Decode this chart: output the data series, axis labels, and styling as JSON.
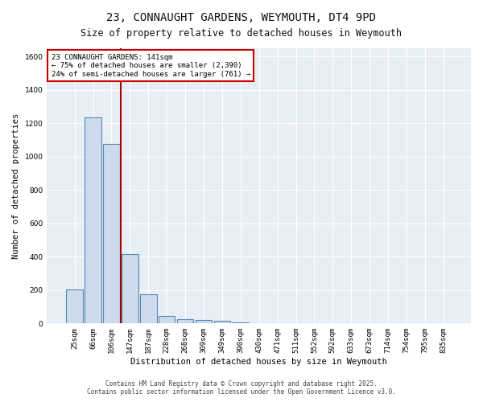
{
  "title_line1": "23, CONNAUGHT GARDENS, WEYMOUTH, DT4 9PD",
  "title_line2": "Size of property relative to detached houses in Weymouth",
  "xlabel": "Distribution of detached houses by size in Weymouth",
  "ylabel": "Number of detached properties",
  "categories": [
    "25sqm",
    "66sqm",
    "106sqm",
    "147sqm",
    "187sqm",
    "228sqm",
    "268sqm",
    "309sqm",
    "349sqm",
    "390sqm",
    "430sqm",
    "471sqm",
    "511sqm",
    "552sqm",
    "592sqm",
    "633sqm",
    "673sqm",
    "714sqm",
    "754sqm",
    "795sqm",
    "835sqm"
  ],
  "values": [
    205,
    1235,
    1075,
    415,
    175,
    45,
    25,
    20,
    15,
    5,
    2,
    1,
    0,
    0,
    0,
    0,
    0,
    0,
    0,
    0,
    0
  ],
  "bar_color": "#ccdaeb",
  "bar_edge_color": "#5588bb",
  "bar_edge_width": 0.8,
  "redline_x": 2.5,
  "redline_color": "#aa0000",
  "annotation_text": "23 CONNAUGHT GARDENS: 141sqm\n← 75% of detached houses are smaller (2,390)\n24% of semi-detached houses are larger (761) →",
  "annotation_box_color": "#ffffff",
  "annotation_box_edge_color": "#cc0000",
  "ylim": [
    0,
    1650
  ],
  "yticks": [
    0,
    200,
    400,
    600,
    800,
    1000,
    1200,
    1400,
    1600
  ],
  "background_color": "#dde8f0",
  "plot_bg_color": "#e8eef5",
  "grid_color": "#ffffff",
  "fig_bg_color": "#ffffff",
  "footer_line1": "Contains HM Land Registry data © Crown copyright and database right 2025.",
  "footer_line2": "Contains public sector information licensed under the Open Government Licence v3.0.",
  "title_fontsize": 10,
  "subtitle_fontsize": 8.5,
  "axis_label_fontsize": 7.5,
  "tick_fontsize": 6.5,
  "annotation_fontsize": 6.5,
  "footer_fontsize": 5.5
}
